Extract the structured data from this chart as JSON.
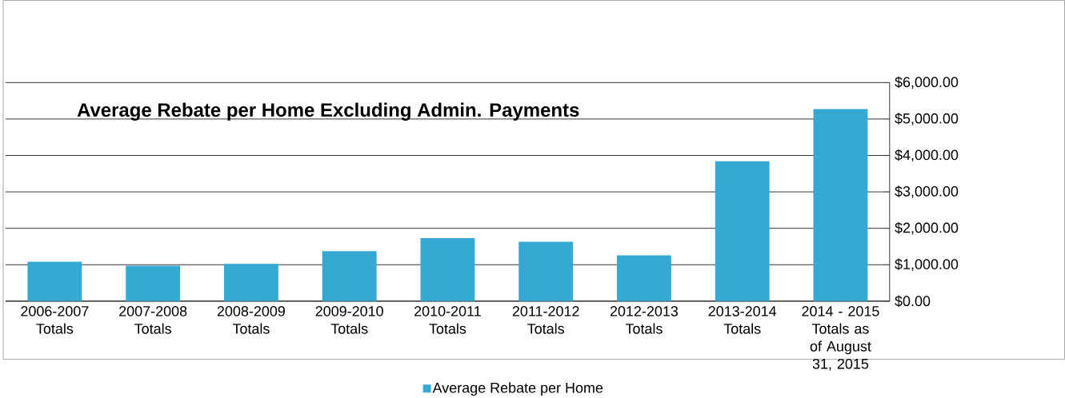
{
  "chart_data": {
    "type": "bar",
    "title": "Average Rebate per Home Excluding Admin. Payments",
    "categories": [
      "2006-2007 Totals",
      "2007-2008 Totals",
      "2008-2009 Totals",
      "2009-2010 Totals",
      "2010-2011 Totals",
      "2011-2012 Totals",
      "2012-2013 Totals",
      "2013-2014 Totals",
      "2014 - 2015 Totals as of August 31, 2015"
    ],
    "series": [
      {
        "name": "Average Rebate per Home",
        "color": "#35a9d3",
        "values": [
          1080,
          970,
          1020,
          1370,
          1730,
          1630,
          1260,
          3840,
          5270
        ]
      }
    ],
    "ylim": [
      0,
      6000
    ],
    "yticks": [
      {
        "value": 0,
        "label": "$0.00"
      },
      {
        "value": 1000,
        "label": "$1,000.00"
      },
      {
        "value": 2000,
        "label": "$2,000.00"
      },
      {
        "value": 3000,
        "label": "$3,000.00"
      },
      {
        "value": 4000,
        "label": "$4,000.00"
      },
      {
        "value": 5000,
        "label": "$5,000.00"
      },
      {
        "value": 6000,
        "label": "$6,000.00"
      }
    ],
    "grid": "y",
    "legend": "bottom"
  }
}
